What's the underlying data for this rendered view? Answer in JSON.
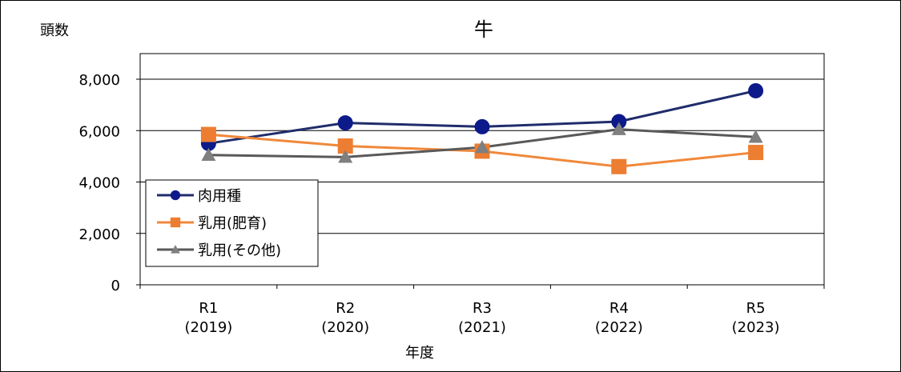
{
  "chart_data": {
    "type": "line",
    "title": "牛",
    "ylabel": "頭数",
    "xlabel": "年度",
    "categories": [
      [
        "R1",
        "(2019)"
      ],
      [
        "R2",
        "(2020)"
      ],
      [
        "R3",
        "(2021)"
      ],
      [
        "R4",
        "(2022)"
      ],
      [
        "R5",
        "(2023)"
      ]
    ],
    "ylim": [
      0,
      8000
    ],
    "yticks": [
      0,
      2000,
      4000,
      6000,
      8000
    ],
    "ytick_labels": [
      "0",
      "2,000",
      "4,000",
      "6,000",
      "8,000"
    ],
    "grid": true,
    "legend_position": "bottom-left",
    "series": [
      {
        "name": "肉用種",
        "values": [
          5500,
          6300,
          6150,
          6350,
          7550
        ],
        "color": "#1F2D6B",
        "marker_color": "#0D1A8A",
        "marker": "circle"
      },
      {
        "name": "乳用(肥育)",
        "values": [
          5850,
          5400,
          5200,
          4600,
          5150
        ],
        "color": "#F0883A",
        "marker_color": "#ED7D31",
        "marker": "square"
      },
      {
        "name": "乳用(その他)",
        "values": [
          5050,
          4970,
          5350,
          6050,
          5750
        ],
        "color": "#595959",
        "marker_color": "#7F7F7F",
        "marker": "triangle"
      }
    ]
  }
}
